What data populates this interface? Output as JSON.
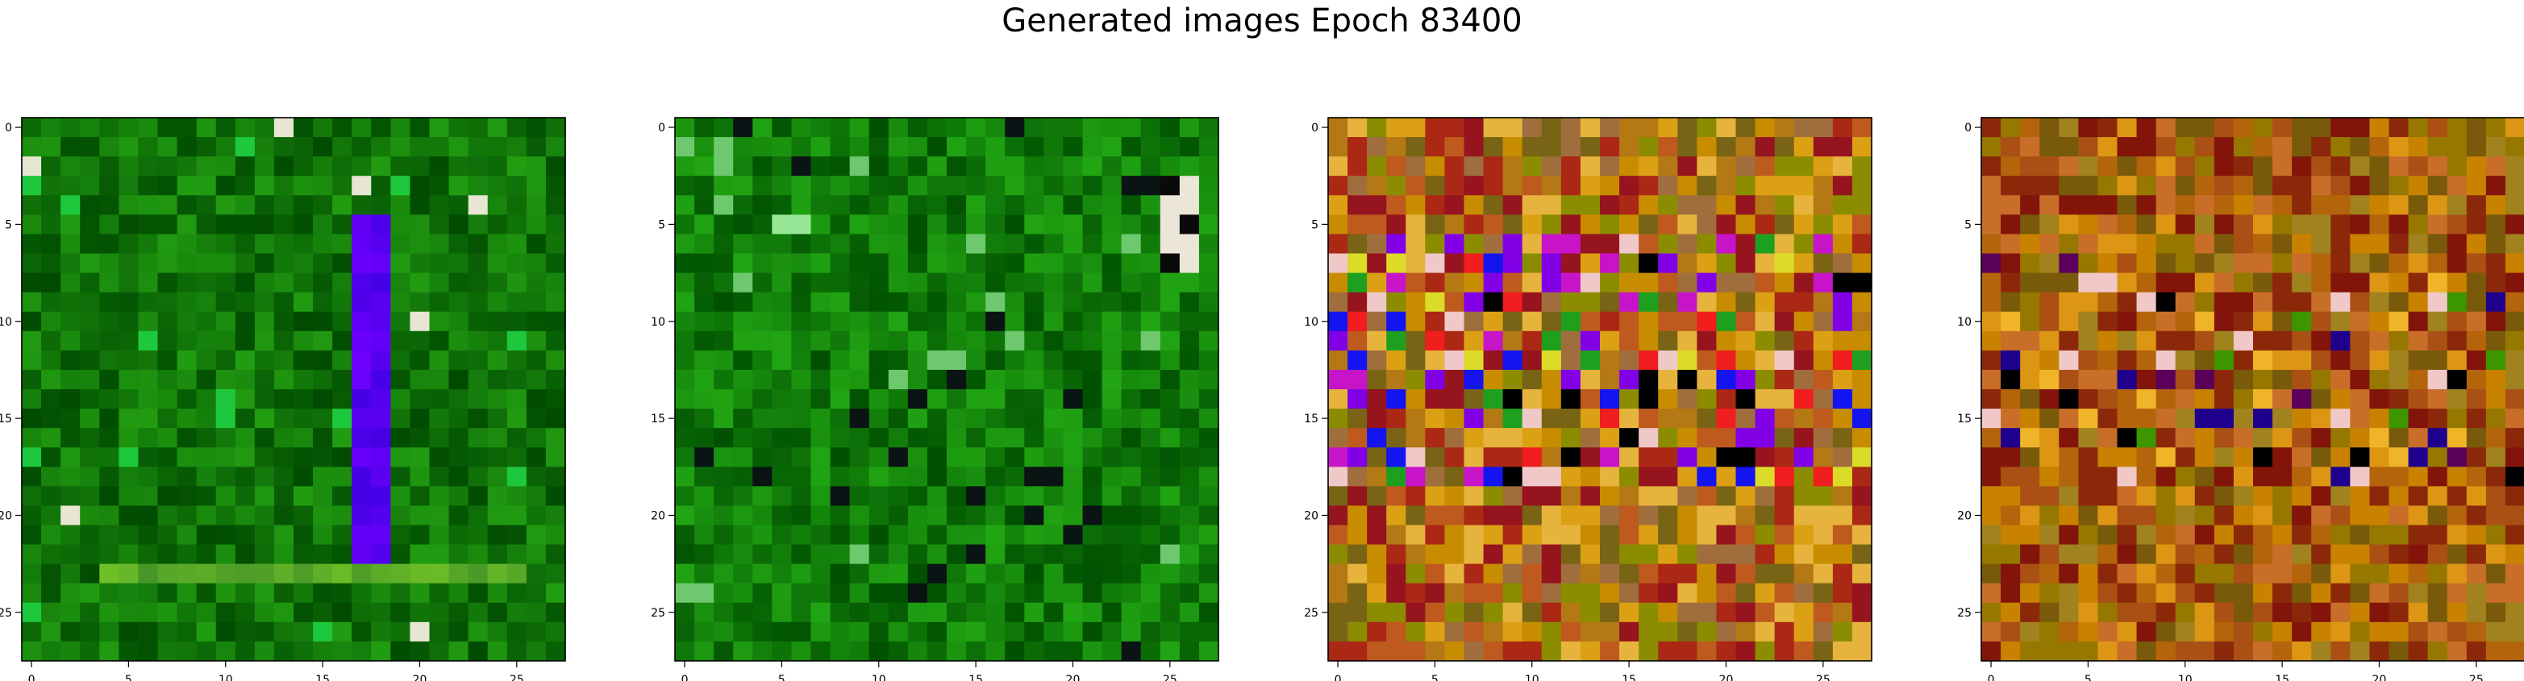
{
  "figure": {
    "title": "Generated images Epoch 83400",
    "images": [
      {
        "name": "generated-image-1",
        "palette": "green",
        "accent_color": "#3b0cff",
        "x_ticks": [
          "0",
          "5",
          "10",
          "15",
          "20",
          "25"
        ],
        "y_ticks": [
          "0",
          "5",
          "10",
          "15",
          "20",
          "25"
        ]
      },
      {
        "name": "generated-image-2",
        "palette": "green",
        "accent_color": "#7fd47f",
        "x_ticks": [
          "0",
          "5",
          "10",
          "15",
          "20",
          "25"
        ],
        "y_ticks": [
          "0",
          "5",
          "10",
          "15",
          "20",
          "25"
        ]
      },
      {
        "name": "generated-image-3",
        "palette": "multicolor",
        "accent_color": "#1f1fff",
        "x_ticks": [
          "0",
          "5",
          "10",
          "15",
          "20",
          "25"
        ],
        "y_ticks": [
          "0",
          "5",
          "10",
          "15",
          "20",
          "25"
        ]
      },
      {
        "name": "generated-image-4",
        "palette": "orange",
        "accent_color": "#c47a00",
        "x_ticks": [
          "0",
          "5",
          "10",
          "15",
          "20",
          "25"
        ],
        "y_ticks": [
          "0",
          "5",
          "10",
          "15",
          "20",
          "25"
        ]
      }
    ]
  }
}
